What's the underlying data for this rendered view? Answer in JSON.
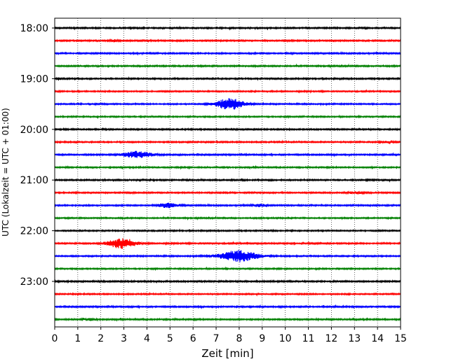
{
  "chart_data": {
    "type": "line",
    "subtype": "helicorder",
    "xlabel": "Zeit  [min]",
    "ylabel": "UTC (Lokalzeit = UTC + 01:00)",
    "xlim": [
      0,
      15
    ],
    "x_ticks": [
      "0",
      "1",
      "2",
      "3",
      "4",
      "5",
      "6",
      "7",
      "8",
      "9",
      "10",
      "11",
      "12",
      "13",
      "14",
      "15"
    ],
    "y_ticks": [
      {
        "label": "18:00",
        "row": 0
      },
      {
        "label": "19:00",
        "row": 4
      },
      {
        "label": "20:00",
        "row": 8
      },
      {
        "label": "21:00",
        "row": 12
      },
      {
        "label": "22:00",
        "row": 16
      },
      {
        "label": "23:00",
        "row": 20
      }
    ],
    "grid_x": "dotted vertical at each minute",
    "row_interval_minutes": 15,
    "row_colors": [
      "#000000",
      "#ff0000",
      "#0000ff",
      "#008000"
    ],
    "rows": [
      {
        "start": "18:00",
        "color": "#000000",
        "noise": 0.3,
        "events": []
      },
      {
        "start": "18:15",
        "color": "#ff0000",
        "noise": 0.3,
        "events": [
          {
            "t": 2.6,
            "amp": 0.5,
            "width": 0.15
          }
        ]
      },
      {
        "start": "18:30",
        "color": "#0000ff",
        "noise": 0.3,
        "events": []
      },
      {
        "start": "18:45",
        "color": "#008000",
        "noise": 0.3,
        "events": []
      },
      {
        "start": "19:00",
        "color": "#000000",
        "noise": 0.3,
        "events": [
          {
            "t": 0.15,
            "amp": 0.6,
            "width": 0.1
          }
        ]
      },
      {
        "start": "19:15",
        "color": "#ff0000",
        "noise": 0.28,
        "events": []
      },
      {
        "start": "19:30",
        "color": "#0000ff",
        "noise": 0.28,
        "events": [
          {
            "t": 7.6,
            "amp": 2.6,
            "width": 0.6
          }
        ]
      },
      {
        "start": "19:45",
        "color": "#008000",
        "noise": 0.28,
        "events": []
      },
      {
        "start": "20:00",
        "color": "#000000",
        "noise": 0.3,
        "events": []
      },
      {
        "start": "20:15",
        "color": "#ff0000",
        "noise": 0.3,
        "events": [
          {
            "t": 14.5,
            "amp": 0.4,
            "width": 0.3
          }
        ]
      },
      {
        "start": "20:30",
        "color": "#0000ff",
        "noise": 0.3,
        "events": [
          {
            "t": 3.6,
            "amp": 1.4,
            "width": 0.7
          }
        ]
      },
      {
        "start": "20:45",
        "color": "#008000",
        "noise": 0.28,
        "events": []
      },
      {
        "start": "21:00",
        "color": "#000000",
        "noise": 0.3,
        "events": []
      },
      {
        "start": "21:15",
        "color": "#ff0000",
        "noise": 0.3,
        "events": [
          {
            "t": 13.0,
            "amp": 0.4,
            "width": 0.3
          }
        ]
      },
      {
        "start": "21:30",
        "color": "#0000ff",
        "noise": 0.3,
        "events": [
          {
            "t": 4.9,
            "amp": 1.1,
            "width": 0.4
          },
          {
            "t": 8.9,
            "amp": 0.6,
            "width": 0.3
          }
        ]
      },
      {
        "start": "21:45",
        "color": "#008000",
        "noise": 0.28,
        "events": []
      },
      {
        "start": "22:00",
        "color": "#000000",
        "noise": 0.28,
        "events": []
      },
      {
        "start": "22:15",
        "color": "#ff0000",
        "noise": 0.3,
        "events": [
          {
            "t": 2.9,
            "amp": 2.2,
            "width": 0.6
          }
        ]
      },
      {
        "start": "22:30",
        "color": "#0000ff",
        "noise": 0.3,
        "events": [
          {
            "t": 8.0,
            "amp": 2.6,
            "width": 0.8
          }
        ]
      },
      {
        "start": "22:45",
        "color": "#008000",
        "noise": 0.28,
        "events": []
      },
      {
        "start": "23:00",
        "color": "#000000",
        "noise": 0.32,
        "events": []
      },
      {
        "start": "23:15",
        "color": "#ff0000",
        "noise": 0.28,
        "events": []
      },
      {
        "start": "23:30",
        "color": "#0000ff",
        "noise": 0.3,
        "events": []
      },
      {
        "start": "23:45",
        "color": "#008000",
        "noise": 0.3,
        "events": [
          {
            "t": 1.5,
            "amp": 0.4,
            "width": 0.3
          }
        ]
      }
    ]
  }
}
